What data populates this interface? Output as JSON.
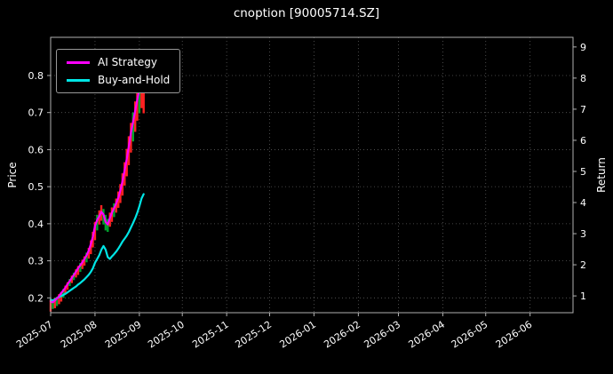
{
  "title": "cnoption [90005714.SZ]",
  "left_axis_label": "Price",
  "right_axis_label": "Return",
  "legend": {
    "items": [
      {
        "label": "AI Strategy",
        "color": "#ff00ff"
      },
      {
        "label": "Buy-and-Hold",
        "color": "#00e5e5"
      }
    ]
  },
  "colors": {
    "background": "#000000",
    "text": "#ffffff",
    "grid": "#5a5a5a",
    "spine": "#b0b0b0",
    "candle_red": "#ff2222",
    "candle_green": "#00a32e"
  },
  "chart_data": {
    "type": "line",
    "overlays": [
      "candlestick"
    ],
    "title": "cnoption [90005714.SZ]",
    "xlabel": "",
    "ylabel_left": "Price",
    "ylabel_right": "Return",
    "grid": "dotted",
    "legend_position": "upper-left",
    "x_axis": {
      "range_days": [
        0,
        365
      ],
      "ticks": [
        {
          "label": "2025-07",
          "day": 0
        },
        {
          "label": "2025-08",
          "day": 31
        },
        {
          "label": "2025-09",
          "day": 62
        },
        {
          "label": "2025-10",
          "day": 92
        },
        {
          "label": "2025-11",
          "day": 123
        },
        {
          "label": "2025-12",
          "day": 153
        },
        {
          "label": "2026-01",
          "day": 184
        },
        {
          "label": "2026-02",
          "day": 215
        },
        {
          "label": "2026-03",
          "day": 243
        },
        {
          "label": "2026-04",
          "day": 274
        },
        {
          "label": "2026-05",
          "day": 304
        },
        {
          "label": "2026-06",
          "day": 335
        }
      ]
    },
    "left_axis": {
      "label": "Price",
      "range": [
        0.16,
        0.903
      ],
      "ticks": [
        "0.2",
        "0.3",
        "0.4",
        "0.5",
        "0.6",
        "0.7",
        "0.8"
      ]
    },
    "right_axis": {
      "label": "Return",
      "range": [
        0.46,
        9.31
      ],
      "ticks": [
        "1",
        "2",
        "3",
        "4",
        "5",
        "6",
        "7",
        "8",
        "9"
      ]
    },
    "series": [
      {
        "name": "AI Strategy",
        "color": "#ff00ff",
        "axis": "left",
        "start_day": 0,
        "end_day": 65,
        "values": [
          0.19,
          0.188,
          0.193,
          0.198,
          0.205,
          0.213,
          0.22,
          0.228,
          0.237,
          0.245,
          0.254,
          0.262,
          0.271,
          0.28,
          0.288,
          0.296,
          0.305,
          0.315,
          0.327,
          0.345,
          0.365,
          0.395,
          0.41,
          0.42,
          0.432,
          0.425,
          0.405,
          0.398,
          0.415,
          0.43,
          0.442,
          0.455,
          0.47,
          0.49,
          0.515,
          0.545,
          0.575,
          0.61,
          0.645,
          0.675,
          0.705,
          0.735,
          0.765,
          0.79,
          0.81
        ]
      },
      {
        "name": "Buy-and-Hold",
        "color": "#00e5e5",
        "axis": "left",
        "start_day": 0,
        "end_day": 65,
        "values": [
          0.195,
          0.193,
          0.196,
          0.199,
          0.202,
          0.205,
          0.208,
          0.211,
          0.215,
          0.219,
          0.223,
          0.227,
          0.231,
          0.236,
          0.24,
          0.245,
          0.25,
          0.256,
          0.262,
          0.27,
          0.28,
          0.295,
          0.305,
          0.315,
          0.33,
          0.34,
          0.33,
          0.31,
          0.305,
          0.312,
          0.318,
          0.325,
          0.333,
          0.342,
          0.352,
          0.36,
          0.368,
          0.378,
          0.39,
          0.402,
          0.415,
          0.43,
          0.448,
          0.468,
          0.48
        ]
      }
    ],
    "candles": [
      [
        0,
        0.163,
        0.196,
        "r"
      ],
      [
        1.5,
        0.17,
        0.193,
        "g"
      ],
      [
        3,
        0.172,
        0.2,
        "r"
      ],
      [
        4.4,
        0.178,
        0.203,
        "g"
      ],
      [
        5.9,
        0.183,
        0.21,
        "r"
      ],
      [
        7.4,
        0.19,
        0.216,
        "r"
      ],
      [
        8.9,
        0.2,
        0.224,
        "g"
      ],
      [
        10.3,
        0.212,
        0.233,
        "r"
      ],
      [
        11.8,
        0.222,
        0.242,
        "r"
      ],
      [
        13.3,
        0.232,
        0.251,
        "g"
      ],
      [
        14.8,
        0.24,
        0.26,
        "r"
      ],
      [
        16.2,
        0.248,
        0.268,
        "g"
      ],
      [
        17.7,
        0.255,
        0.277,
        "r"
      ],
      [
        19.2,
        0.262,
        0.286,
        "r"
      ],
      [
        20.7,
        0.27,
        0.294,
        "g"
      ],
      [
        22.2,
        0.278,
        0.303,
        "r"
      ],
      [
        23.6,
        0.287,
        0.312,
        "r"
      ],
      [
        25.1,
        0.296,
        0.322,
        "g"
      ],
      [
        26.6,
        0.306,
        0.335,
        "r"
      ],
      [
        28.1,
        0.318,
        0.355,
        "r"
      ],
      [
        29.5,
        0.336,
        0.378,
        "r"
      ],
      [
        31,
        0.356,
        0.405,
        "r"
      ],
      [
        32.5,
        0.382,
        0.424,
        "g"
      ],
      [
        34,
        0.398,
        0.436,
        "r"
      ],
      [
        35.4,
        0.408,
        0.45,
        "r"
      ],
      [
        36.9,
        0.398,
        0.44,
        "g"
      ],
      [
        38.4,
        0.382,
        0.424,
        "g"
      ],
      [
        39.9,
        0.378,
        0.413,
        "g"
      ],
      [
        41.4,
        0.392,
        0.43,
        "r"
      ],
      [
        42.8,
        0.405,
        0.444,
        "r"
      ],
      [
        44.3,
        0.418,
        0.455,
        "g"
      ],
      [
        45.8,
        0.43,
        0.468,
        "r"
      ],
      [
        47.3,
        0.443,
        0.487,
        "r"
      ],
      [
        48.7,
        0.456,
        0.507,
        "r"
      ],
      [
        50.2,
        0.476,
        0.536,
        "r"
      ],
      [
        51.7,
        0.503,
        0.566,
        "r"
      ],
      [
        53.2,
        0.528,
        0.602,
        "r"
      ],
      [
        54.6,
        0.558,
        0.636,
        "r"
      ],
      [
        56.1,
        0.592,
        0.672,
        "r"
      ],
      [
        57.6,
        0.622,
        0.7,
        "g"
      ],
      [
        59.1,
        0.648,
        0.73,
        "r"
      ],
      [
        60.5,
        0.678,
        0.757,
        "r"
      ],
      [
        62,
        0.698,
        0.775,
        "g"
      ],
      [
        63.5,
        0.712,
        0.782,
        "r"
      ],
      [
        65,
        0.698,
        0.764,
        "r"
      ]
    ]
  }
}
